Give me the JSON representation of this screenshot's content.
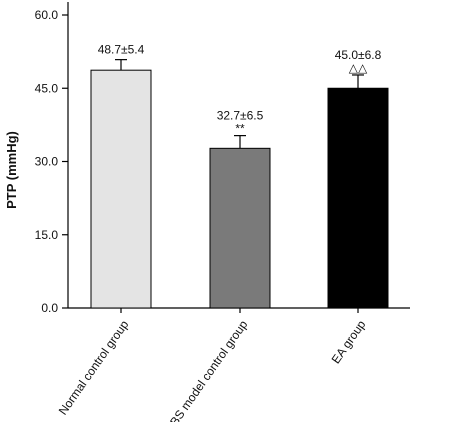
{
  "chart_data": {
    "type": "bar",
    "ylabel": "PTP (mmHg)",
    "ylim": [
      0,
      60
    ],
    "yticks": [
      "0.0",
      "15.0",
      "30.0",
      "45.0",
      "60.0"
    ],
    "categories": [
      "Normal control group",
      "IBS model control group",
      "EA group"
    ],
    "values": [
      48.7,
      32.7,
      45.0
    ],
    "errors": [
      5.4,
      6.5,
      6.8
    ],
    "value_labels": [
      "48.7±5.4",
      "32.7±6.5",
      "45.0±6.8"
    ],
    "significance": [
      "",
      "**",
      "△△"
    ],
    "colors": [
      "#e4e4e4",
      "#7a7a7a",
      "#000000"
    ],
    "grid": false
  }
}
